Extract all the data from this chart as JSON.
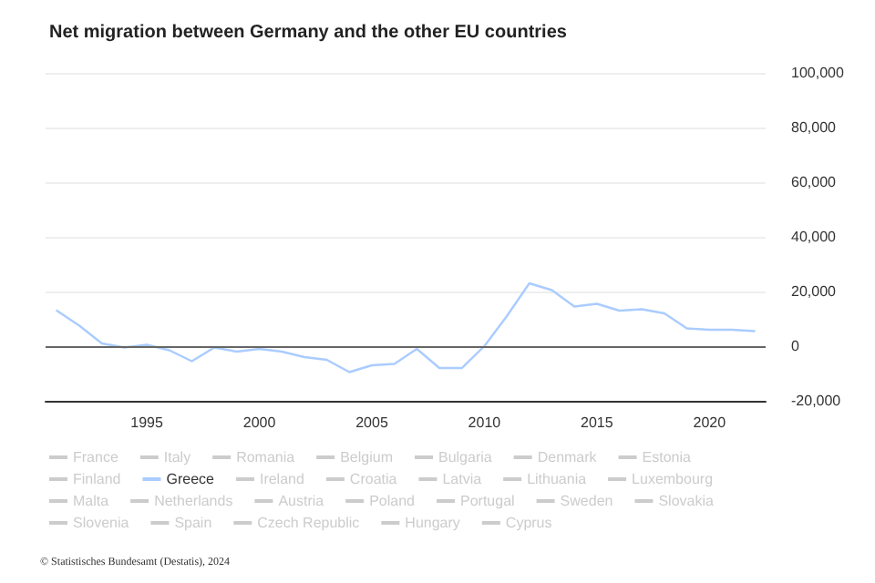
{
  "chart_data": {
    "type": "line",
    "title": "Net migration between Germany and the other EU countries",
    "x": [
      1991,
      1992,
      1993,
      1994,
      1995,
      1996,
      1997,
      1998,
      1999,
      2000,
      2001,
      2002,
      2003,
      2004,
      2005,
      2006,
      2007,
      2008,
      2009,
      2010,
      2011,
      2012,
      2013,
      2014,
      2015,
      2016,
      2017,
      2018,
      2019,
      2020,
      2021,
      2022
    ],
    "xlim": [
      1990.5,
      2022.5
    ],
    "xticks": [
      1995,
      2000,
      2005,
      2010,
      2015,
      2020
    ],
    "ylim": [
      -20000,
      100000
    ],
    "yticks": [
      {
        "value": -20000,
        "label": "-20,000"
      },
      0,
      {
        "value": 20000,
        "label": "20,000"
      },
      {
        "value": 40000,
        "label": "40,000"
      },
      {
        "value": 60000,
        "label": "60,000"
      },
      {
        "value": 80000,
        "label": "80,000"
      },
      {
        "value": 100000,
        "label": "100,000"
      }
    ],
    "grid": "y",
    "legend": "bottom",
    "marker": "none",
    "line_style": "solid",
    "ref_lines": [
      {
        "axis": "y",
        "value": 0,
        "color": "#666666"
      }
    ],
    "series": [
      {
        "name": "France",
        "color": "#cccccc",
        "values": [
          null,
          null,
          null,
          null,
          null,
          null,
          null,
          null,
          null,
          null,
          null,
          null,
          null,
          null,
          null,
          null,
          null,
          null,
          null,
          null,
          null,
          null,
          null,
          null,
          null,
          null,
          null,
          null,
          null,
          null,
          null,
          null
        ]
      },
      {
        "name": "Italy",
        "color": "#cccccc",
        "values": [
          null,
          null,
          null,
          null,
          null,
          null,
          null,
          null,
          null,
          null,
          null,
          null,
          null,
          null,
          null,
          null,
          null,
          null,
          null,
          null,
          null,
          null,
          null,
          null,
          null,
          null,
          null,
          null,
          null,
          null,
          null,
          null
        ]
      },
      {
        "name": "Romania",
        "color": "#cccccc",
        "values": [
          null,
          null,
          null,
          null,
          null,
          null,
          null,
          null,
          null,
          null,
          null,
          null,
          null,
          null,
          null,
          null,
          null,
          null,
          null,
          null,
          null,
          null,
          null,
          null,
          null,
          null,
          null,
          null,
          null,
          null,
          null,
          null
        ]
      },
      {
        "name": "Belgium",
        "color": "#cccccc",
        "values": [
          null,
          null,
          null,
          null,
          null,
          null,
          null,
          null,
          null,
          null,
          null,
          null,
          null,
          null,
          null,
          null,
          null,
          null,
          null,
          null,
          null,
          null,
          null,
          null,
          null,
          null,
          null,
          null,
          null,
          null,
          null,
          null
        ]
      },
      {
        "name": "Bulgaria",
        "color": "#cccccc",
        "values": [
          null,
          null,
          null,
          null,
          null,
          null,
          null,
          null,
          null,
          null,
          null,
          null,
          null,
          null,
          null,
          null,
          null,
          null,
          null,
          null,
          null,
          null,
          null,
          null,
          null,
          null,
          null,
          null,
          null,
          null,
          null,
          null
        ]
      },
      {
        "name": "Denmark",
        "color": "#cccccc",
        "values": [
          null,
          null,
          null,
          null,
          null,
          null,
          null,
          null,
          null,
          null,
          null,
          null,
          null,
          null,
          null,
          null,
          null,
          null,
          null,
          null,
          null,
          null,
          null,
          null,
          null,
          null,
          null,
          null,
          null,
          null,
          null,
          null
        ]
      },
      {
        "name": "Estonia",
        "color": "#cccccc",
        "values": [
          null,
          null,
          null,
          null,
          null,
          null,
          null,
          null,
          null,
          null,
          null,
          null,
          null,
          null,
          null,
          null,
          null,
          null,
          null,
          null,
          null,
          null,
          null,
          null,
          null,
          null,
          null,
          null,
          null,
          null,
          null,
          null
        ]
      },
      {
        "name": "Finland",
        "color": "#cccccc",
        "values": [
          null,
          null,
          null,
          null,
          null,
          null,
          null,
          null,
          null,
          null,
          null,
          null,
          null,
          null,
          null,
          null,
          null,
          null,
          null,
          null,
          null,
          null,
          null,
          null,
          null,
          null,
          null,
          null,
          null,
          null,
          null,
          null
        ]
      },
      {
        "name": "Greece",
        "color": "#aaccff",
        "values": [
          13000,
          7500,
          1000,
          -500,
          500,
          -1500,
          -5500,
          -500,
          -2000,
          -1000,
          -2000,
          -4000,
          -5000,
          -9500,
          -7000,
          -6500,
          -1000,
          -8000,
          -8000,
          0,
          11000,
          23000,
          20500,
          14500,
          15500,
          13000,
          13500,
          12000,
          6500,
          6000,
          6000,
          5500
        ]
      },
      {
        "name": "Ireland",
        "color": "#cccccc",
        "values": [
          null,
          null,
          null,
          null,
          null,
          null,
          null,
          null,
          null,
          null,
          null,
          null,
          null,
          null,
          null,
          null,
          null,
          null,
          null,
          null,
          null,
          null,
          null,
          null,
          null,
          null,
          null,
          null,
          null,
          null,
          null,
          null
        ]
      },
      {
        "name": "Croatia",
        "color": "#cccccc",
        "values": [
          null,
          null,
          null,
          null,
          null,
          null,
          null,
          null,
          null,
          null,
          null,
          null,
          null,
          null,
          null,
          null,
          null,
          null,
          null,
          null,
          null,
          null,
          null,
          null,
          null,
          null,
          null,
          null,
          null,
          null,
          null,
          null
        ]
      },
      {
        "name": "Latvia",
        "color": "#cccccc",
        "values": [
          null,
          null,
          null,
          null,
          null,
          null,
          null,
          null,
          null,
          null,
          null,
          null,
          null,
          null,
          null,
          null,
          null,
          null,
          null,
          null,
          null,
          null,
          null,
          null,
          null,
          null,
          null,
          null,
          null,
          null,
          null,
          null
        ]
      },
      {
        "name": "Lithuania",
        "color": "#cccccc",
        "values": [
          null,
          null,
          null,
          null,
          null,
          null,
          null,
          null,
          null,
          null,
          null,
          null,
          null,
          null,
          null,
          null,
          null,
          null,
          null,
          null,
          null,
          null,
          null,
          null,
          null,
          null,
          null,
          null,
          null,
          null,
          null,
          null
        ]
      },
      {
        "name": "Luxembourg",
        "color": "#cccccc",
        "values": [
          null,
          null,
          null,
          null,
          null,
          null,
          null,
          null,
          null,
          null,
          null,
          null,
          null,
          null,
          null,
          null,
          null,
          null,
          null,
          null,
          null,
          null,
          null,
          null,
          null,
          null,
          null,
          null,
          null,
          null,
          null,
          null
        ]
      },
      {
        "name": "Malta",
        "color": "#cccccc",
        "values": [
          null,
          null,
          null,
          null,
          null,
          null,
          null,
          null,
          null,
          null,
          null,
          null,
          null,
          null,
          null,
          null,
          null,
          null,
          null,
          null,
          null,
          null,
          null,
          null,
          null,
          null,
          null,
          null,
          null,
          null,
          null,
          null
        ]
      },
      {
        "name": "Netherlands",
        "color": "#cccccc",
        "values": [
          null,
          null,
          null,
          null,
          null,
          null,
          null,
          null,
          null,
          null,
          null,
          null,
          null,
          null,
          null,
          null,
          null,
          null,
          null,
          null,
          null,
          null,
          null,
          null,
          null,
          null,
          null,
          null,
          null,
          null,
          null,
          null
        ]
      },
      {
        "name": "Austria",
        "color": "#cccccc",
        "values": [
          null,
          null,
          null,
          null,
          null,
          null,
          null,
          null,
          null,
          null,
          null,
          null,
          null,
          null,
          null,
          null,
          null,
          null,
          null,
          null,
          null,
          null,
          null,
          null,
          null,
          null,
          null,
          null,
          null,
          null,
          null,
          null
        ]
      },
      {
        "name": "Poland",
        "color": "#cccccc",
        "values": [
          null,
          null,
          null,
          null,
          null,
          null,
          null,
          null,
          null,
          null,
          null,
          null,
          null,
          null,
          null,
          null,
          null,
          null,
          null,
          null,
          null,
          null,
          null,
          null,
          null,
          null,
          null,
          null,
          null,
          null,
          null,
          null
        ]
      },
      {
        "name": "Portugal",
        "color": "#cccccc",
        "values": [
          null,
          null,
          null,
          null,
          null,
          null,
          null,
          null,
          null,
          null,
          null,
          null,
          null,
          null,
          null,
          null,
          null,
          null,
          null,
          null,
          null,
          null,
          null,
          null,
          null,
          null,
          null,
          null,
          null,
          null,
          null,
          null
        ]
      },
      {
        "name": "Sweden",
        "color": "#cccccc",
        "values": [
          null,
          null,
          null,
          null,
          null,
          null,
          null,
          null,
          null,
          null,
          null,
          null,
          null,
          null,
          null,
          null,
          null,
          null,
          null,
          null,
          null,
          null,
          null,
          null,
          null,
          null,
          null,
          null,
          null,
          null,
          null,
          null
        ]
      },
      {
        "name": "Slovakia",
        "color": "#cccccc",
        "values": [
          null,
          null,
          null,
          null,
          null,
          null,
          null,
          null,
          null,
          null,
          null,
          null,
          null,
          null,
          null,
          null,
          null,
          null,
          null,
          null,
          null,
          null,
          null,
          null,
          null,
          null,
          null,
          null,
          null,
          null,
          null,
          null
        ]
      },
      {
        "name": "Slovenia",
        "color": "#cccccc",
        "values": [
          null,
          null,
          null,
          null,
          null,
          null,
          null,
          null,
          null,
          null,
          null,
          null,
          null,
          null,
          null,
          null,
          null,
          null,
          null,
          null,
          null,
          null,
          null,
          null,
          null,
          null,
          null,
          null,
          null,
          null,
          null,
          null
        ]
      },
      {
        "name": "Spain",
        "color": "#cccccc",
        "values": [
          null,
          null,
          null,
          null,
          null,
          null,
          null,
          null,
          null,
          null,
          null,
          null,
          null,
          null,
          null,
          null,
          null,
          null,
          null,
          null,
          null,
          null,
          null,
          null,
          null,
          null,
          null,
          null,
          null,
          null,
          null,
          null
        ]
      },
      {
        "name": "Czech Republic",
        "color": "#cccccc",
        "values": [
          null,
          null,
          null,
          null,
          null,
          null,
          null,
          null,
          null,
          null,
          null,
          null,
          null,
          null,
          null,
          null,
          null,
          null,
          null,
          null,
          null,
          null,
          null,
          null,
          null,
          null,
          null,
          null,
          null,
          null,
          null,
          null
        ]
      },
      {
        "name": "Hungary",
        "color": "#cccccc",
        "values": [
          null,
          null,
          null,
          null,
          null,
          null,
          null,
          null,
          null,
          null,
          null,
          null,
          null,
          null,
          null,
          null,
          null,
          null,
          null,
          null,
          null,
          null,
          null,
          null,
          null,
          null,
          null,
          null,
          null,
          null,
          null,
          null
        ]
      },
      {
        "name": "Cyprus",
        "color": "#cccccc",
        "values": [
          null,
          null,
          null,
          null,
          null,
          null,
          null,
          null,
          null,
          null,
          null,
          null,
          null,
          null,
          null,
          null,
          null,
          null,
          null,
          null,
          null,
          null,
          null,
          null,
          null,
          null,
          null,
          null,
          null,
          null,
          null,
          null
        ]
      }
    ],
    "annotations": [
      "© Statistisches Bundesamt (Destatis), 2024"
    ]
  }
}
